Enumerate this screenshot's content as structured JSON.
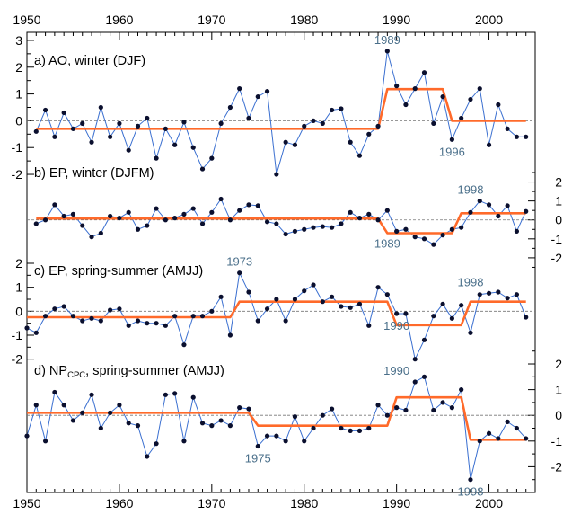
{
  "chart_data": {
    "type": "line",
    "x_ticks": [
      "1950",
      "1960",
      "1970",
      "1980",
      "1990",
      "2000"
    ],
    "xlim": [
      1950,
      2005
    ],
    "colors": {
      "series": "#3a6fd0",
      "points": "#0a0f2e",
      "regime": "#ff6a2a",
      "annotation": "#4a6f8a",
      "zero": "#777777"
    },
    "panels": [
      {
        "label": "a) AO, winter (DJF)",
        "label_sub": "",
        "label_tail": "",
        "y_axis": "left",
        "ylim": [
          -2.2,
          3.3
        ],
        "y_ticks": [
          "3",
          "2",
          "1",
          "0",
          "-1",
          "-2"
        ],
        "y_tick_values": [
          3,
          2,
          1,
          0,
          -1,
          -2
        ],
        "x": [
          1951,
          1952,
          1953,
          1954,
          1955,
          1956,
          1957,
          1958,
          1959,
          1960,
          1961,
          1962,
          1963,
          1964,
          1965,
          1966,
          1967,
          1968,
          1969,
          1970,
          1971,
          1972,
          1973,
          1974,
          1975,
          1976,
          1977,
          1978,
          1979,
          1980,
          1981,
          1982,
          1983,
          1984,
          1985,
          1986,
          1987,
          1988,
          1989,
          1990,
          1991,
          1992,
          1993,
          1994,
          1995,
          1996,
          1997,
          1998,
          1999,
          2000,
          2001,
          2002,
          2003,
          2004
        ],
        "values": [
          -0.4,
          0.4,
          -0.6,
          0.3,
          -0.3,
          -0.1,
          -0.8,
          0.5,
          -0.6,
          -0.1,
          -1.1,
          -0.2,
          0.1,
          -1.4,
          -0.3,
          -0.9,
          -0.05,
          -1.0,
          -1.8,
          -1.4,
          -0.1,
          0.5,
          1.2,
          0.1,
          0.9,
          1.1,
          -2.0,
          -0.8,
          -0.9,
          -0.2,
          0.0,
          -0.1,
          0.4,
          0.45,
          -0.8,
          -1.3,
          -0.5,
          -0.2,
          2.6,
          1.3,
          0.6,
          1.2,
          1.8,
          -0.1,
          0.9,
          -0.7,
          0.1,
          0.8,
          1.2,
          -0.9,
          0.6,
          -0.3,
          -0.6,
          -0.6
        ],
        "regime": [
          {
            "start": 1951,
            "end": 1988,
            "value": -0.3
          },
          {
            "start": 1989,
            "end": 1995,
            "value": 1.18
          },
          {
            "start": 1996,
            "end": 2004,
            "value": 0.0
          }
        ],
        "annotations": [
          {
            "text": "1989",
            "x": 1989,
            "y": 2.6,
            "place": "above"
          },
          {
            "text": "1996",
            "x": 1996,
            "y": -0.7,
            "place": "below"
          }
        ]
      },
      {
        "label": "b) EP, winter (DJFM)",
        "label_sub": "",
        "label_tail": "",
        "y_axis": "right",
        "ylim": [
          -3.0,
          2.5
        ],
        "y_ticks": [
          "2",
          "1",
          "0",
          "-1",
          "-2"
        ],
        "y_tick_values": [
          2,
          1,
          0,
          -1,
          -2
        ],
        "x": [
          1951,
          1952,
          1953,
          1954,
          1955,
          1956,
          1957,
          1958,
          1959,
          1960,
          1961,
          1962,
          1963,
          1964,
          1965,
          1966,
          1967,
          1968,
          1969,
          1970,
          1971,
          1972,
          1973,
          1974,
          1975,
          1976,
          1977,
          1978,
          1979,
          1980,
          1981,
          1982,
          1983,
          1984,
          1985,
          1986,
          1987,
          1988,
          1989,
          1990,
          1991,
          1992,
          1993,
          1994,
          1995,
          1996,
          1997,
          1998,
          1999,
          2000,
          2001,
          2002,
          2003,
          2004
        ],
        "values": [
          -0.2,
          0.0,
          0.8,
          0.2,
          0.3,
          -0.3,
          -0.9,
          -0.7,
          0.2,
          0.1,
          0.4,
          -0.5,
          -0.3,
          0.6,
          0.0,
          0.1,
          0.3,
          0.6,
          -0.2,
          0.4,
          1.1,
          0.0,
          0.5,
          0.8,
          0.75,
          -0.1,
          -0.2,
          -0.75,
          -0.6,
          -0.5,
          -0.4,
          -0.35,
          -0.4,
          -0.2,
          0.4,
          0.1,
          0.3,
          0.0,
          0.5,
          -0.6,
          -0.5,
          -0.9,
          -1.0,
          -1.3,
          -0.8,
          -0.5,
          -0.4,
          0.4,
          1.0,
          0.8,
          0.2,
          0.75,
          -0.6,
          0.45
        ],
        "regime": [
          {
            "start": 1951,
            "end": 1988,
            "value": 0.07
          },
          {
            "start": 1989,
            "end": 1996,
            "value": -0.7
          },
          {
            "start": 1997,
            "end": 2004,
            "value": 0.35
          }
        ],
        "annotations": [
          {
            "text": "1998",
            "x": 1998,
            "y": 1.0,
            "place": "above"
          },
          {
            "text": "1989",
            "x": 1989,
            "y": -0.6,
            "place": "below"
          }
        ]
      },
      {
        "label": "c) EP, spring-summer (AMJJ)",
        "label_sub": "",
        "label_tail": "",
        "y_axis": "left",
        "ylim": [
          -2.2,
          2.3
        ],
        "y_ticks": [
          "2",
          "1",
          "0",
          "-1",
          "-2"
        ],
        "y_tick_values": [
          2,
          1,
          0,
          -1,
          -2
        ],
        "x": [
          1950,
          1951,
          1952,
          1953,
          1954,
          1955,
          1956,
          1957,
          1958,
          1959,
          1960,
          1961,
          1962,
          1963,
          1964,
          1965,
          1966,
          1967,
          1968,
          1969,
          1970,
          1971,
          1972,
          1973,
          1974,
          1975,
          1976,
          1977,
          1978,
          1979,
          1980,
          1981,
          1982,
          1983,
          1984,
          1985,
          1986,
          1987,
          1988,
          1989,
          1990,
          1991,
          1992,
          1993,
          1994,
          1995,
          1996,
          1997,
          1998,
          1999,
          2000,
          2001,
          2002,
          2003,
          2004
        ],
        "values": [
          -0.7,
          -0.9,
          -0.2,
          0.1,
          0.2,
          -0.2,
          -0.4,
          -0.3,
          -0.4,
          0.05,
          0.1,
          -0.6,
          -0.4,
          -0.5,
          -0.5,
          -0.6,
          -0.2,
          -1.4,
          -0.2,
          -0.2,
          0.0,
          0.6,
          -1.0,
          1.6,
          0.8,
          -0.4,
          0.1,
          0.5,
          -0.4,
          0.5,
          0.85,
          1.1,
          0.4,
          0.6,
          0.2,
          0.15,
          0.3,
          -0.6,
          1.0,
          0.7,
          -0.1,
          -0.1,
          -2.0,
          -1.2,
          -0.2,
          0.3,
          -0.3,
          0.25,
          -0.9,
          0.7,
          0.75,
          0.8,
          0.55,
          0.7,
          -0.25
        ],
        "regime": [
          {
            "start": 1950,
            "end": 1972,
            "value": -0.25
          },
          {
            "start": 1973,
            "end": 1989,
            "value": 0.4
          },
          {
            "start": 1990,
            "end": 1997,
            "value": -0.58
          },
          {
            "start": 1998,
            "end": 2004,
            "value": 0.4
          }
        ],
        "annotations": [
          {
            "text": "1973",
            "x": 1973,
            "y": 1.6,
            "place": "above"
          },
          {
            "text": "1998",
            "x": 1998,
            "y": 0.75,
            "place": "above"
          },
          {
            "text": "1990",
            "x": 1990,
            "y": -0.1,
            "place": "below"
          }
        ]
      },
      {
        "label": "d) NP",
        "label_sub": "CPC",
        "label_tail": ", spring-summer (AMJJ)",
        "y_axis": "right",
        "ylim": [
          -3.0,
          2.7
        ],
        "y_ticks": [
          "2",
          "1",
          "0",
          "-1",
          "-2"
        ],
        "y_tick_values": [
          2,
          1,
          0,
          -1,
          -2
        ],
        "x": [
          1950,
          1951,
          1952,
          1953,
          1954,
          1955,
          1956,
          1957,
          1958,
          1959,
          1960,
          1961,
          1962,
          1963,
          1964,
          1965,
          1966,
          1967,
          1968,
          1969,
          1970,
          1971,
          1972,
          1973,
          1974,
          1975,
          1976,
          1977,
          1978,
          1979,
          1980,
          1981,
          1982,
          1983,
          1984,
          1985,
          1986,
          1987,
          1988,
          1989,
          1990,
          1991,
          1992,
          1993,
          1994,
          1995,
          1996,
          1997,
          1998,
          1999,
          2000,
          2001,
          2002,
          2003,
          2004
        ],
        "values": [
          -0.8,
          0.4,
          -1.0,
          0.9,
          0.4,
          -0.2,
          0.1,
          0.8,
          -0.5,
          0.1,
          0.4,
          -0.3,
          -0.4,
          -1.6,
          -1.1,
          0.8,
          0.85,
          -1.0,
          0.7,
          -0.3,
          -0.4,
          -0.2,
          -0.4,
          0.3,
          0.25,
          -1.2,
          -0.8,
          -0.8,
          -1.0,
          -0.05,
          -1.0,
          -0.5,
          0.0,
          0.25,
          -0.5,
          -0.6,
          -0.6,
          -0.5,
          0.4,
          0.0,
          0.3,
          0.2,
          1.3,
          1.5,
          0.2,
          0.5,
          0.3,
          1.0,
          -2.5,
          -1.0,
          -0.7,
          -0.9,
          -0.25,
          -0.5,
          -0.9
        ],
        "regime": [
          {
            "start": 1950,
            "end": 1974,
            "value": 0.1
          },
          {
            "start": 1975,
            "end": 1989,
            "value": -0.4
          },
          {
            "start": 1990,
            "end": 1997,
            "value": 0.7
          },
          {
            "start": 1998,
            "end": 2004,
            "value": -0.95
          }
        ],
        "annotations": [
          {
            "text": "1990",
            "x": 1990,
            "y": 1.3,
            "place": "above"
          },
          {
            "text": "1975",
            "x": 1975,
            "y": -1.2,
            "place": "below"
          },
          {
            "text": "1998",
            "x": 1998,
            "y": -2.5,
            "place": "below"
          }
        ]
      }
    ]
  }
}
